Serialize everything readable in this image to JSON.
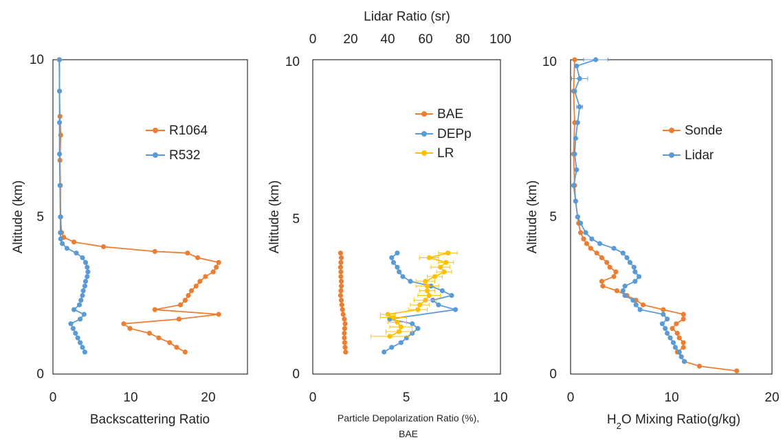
{
  "chart_data": [
    {
      "type": "line",
      "xlabel": "Backscattering Ratio",
      "ylabel": "Altitude (km)",
      "xlim": [
        0,
        25
      ],
      "ylim": [
        0,
        10
      ],
      "xticks": [
        "0",
        "10",
        "20"
      ],
      "yticks": [
        "0",
        "5",
        "10"
      ],
      "grid": false,
      "legend_position": "right",
      "series": [
        {
          "name": "R1064",
          "color": "#ED7D31",
          "points": [
            [
              17.0,
              0.7
            ],
            [
              15.9,
              0.85
            ],
            [
              15.0,
              1.0
            ],
            [
              13.6,
              1.15
            ],
            [
              12.4,
              1.3
            ],
            [
              9.9,
              1.45
            ],
            [
              9.1,
              1.6
            ],
            [
              16.2,
              1.75
            ],
            [
              21.3,
              1.9
            ],
            [
              13.1,
              2.05
            ],
            [
              16.4,
              2.2
            ],
            [
              17.0,
              2.35
            ],
            [
              17.4,
              2.5
            ],
            [
              17.8,
              2.65
            ],
            [
              18.4,
              2.8
            ],
            [
              18.9,
              2.95
            ],
            [
              19.6,
              3.1
            ],
            [
              20.6,
              3.25
            ],
            [
              21.0,
              3.4
            ],
            [
              21.3,
              3.55
            ],
            [
              18.6,
              3.7
            ],
            [
              17.3,
              3.85
            ],
            [
              13.1,
              3.9
            ],
            [
              6.5,
              4.05
            ],
            [
              2.7,
              4.2
            ],
            [
              1.4,
              4.35
            ],
            [
              1.1,
              4.5
            ],
            [
              1.0,
              5.0
            ],
            [
              0.95,
              6.0
            ],
            [
              0.9,
              6.8
            ],
            [
              1.0,
              7.6
            ],
            [
              0.9,
              8.2
            ],
            [
              0.85,
              9.0
            ],
            [
              0.8,
              10.0
            ]
          ]
        },
        {
          "name": "R532",
          "color": "#5B9BD5",
          "points": [
            [
              4.1,
              0.7
            ],
            [
              3.8,
              0.85
            ],
            [
              3.5,
              1.0
            ],
            [
              3.2,
              1.15
            ],
            [
              2.9,
              1.3
            ],
            [
              2.6,
              1.45
            ],
            [
              2.3,
              1.6
            ],
            [
              3.5,
              1.75
            ],
            [
              4.0,
              1.9
            ],
            [
              2.7,
              2.05
            ],
            [
              3.4,
              2.2
            ],
            [
              3.6,
              2.35
            ],
            [
              3.8,
              2.5
            ],
            [
              3.9,
              2.65
            ],
            [
              4.1,
              2.8
            ],
            [
              4.2,
              2.95
            ],
            [
              4.4,
              3.1
            ],
            [
              4.5,
              3.25
            ],
            [
              4.4,
              3.4
            ],
            [
              4.2,
              3.55
            ],
            [
              3.8,
              3.7
            ],
            [
              3.0,
              3.85
            ],
            [
              1.8,
              4.0
            ],
            [
              1.2,
              4.15
            ],
            [
              1.0,
              4.3
            ],
            [
              0.95,
              4.5
            ],
            [
              0.95,
              5.0
            ],
            [
              0.9,
              6.0
            ],
            [
              0.85,
              7.0
            ],
            [
              0.85,
              8.0
            ],
            [
              0.85,
              9.0
            ],
            [
              0.85,
              10.0
            ]
          ]
        }
      ]
    },
    {
      "type": "line",
      "xlabel": "Particle Depolarization Ratio (%),",
      "xlabel_line2": "BAE",
      "x2label": "Lidar Ratio (sr)",
      "ylabel": "Altitude (km)",
      "xlim": [
        0,
        10
      ],
      "x2lim": [
        0,
        100
      ],
      "ylim": [
        0,
        10
      ],
      "xticks": [
        "0",
        "5",
        "10"
      ],
      "x2ticks": [
        "0",
        "20",
        "40",
        "60",
        "80",
        "100"
      ],
      "yticks": [
        "0",
        "5",
        "10"
      ],
      "grid": false,
      "legend_position": "top-right",
      "series": [
        {
          "name": "BAE",
          "color": "#ED7D31",
          "axis": "bottom",
          "points": [
            [
              1.75,
              0.7
            ],
            [
              1.72,
              0.85
            ],
            [
              1.7,
              1.0
            ],
            [
              1.68,
              1.15
            ],
            [
              1.68,
              1.3
            ],
            [
              1.7,
              1.45
            ],
            [
              1.72,
              1.6
            ],
            [
              1.68,
              1.75
            ],
            [
              1.62,
              1.9
            ],
            [
              1.58,
              2.05
            ],
            [
              1.55,
              2.2
            ],
            [
              1.52,
              2.35
            ],
            [
              1.48,
              2.5
            ],
            [
              1.5,
              2.65
            ],
            [
              1.52,
              2.8
            ],
            [
              1.52,
              2.95
            ],
            [
              1.5,
              3.1
            ],
            [
              1.5,
              3.25
            ],
            [
              1.48,
              3.4
            ],
            [
              1.5,
              3.55
            ],
            [
              1.52,
              3.7
            ],
            [
              1.48,
              3.85
            ]
          ]
        },
        {
          "name": "DEPp",
          "color": "#5B9BD5",
          "axis": "bottom",
          "points": [
            [
              3.8,
              0.7
            ],
            [
              4.2,
              0.85
            ],
            [
              4.7,
              1.0
            ],
            [
              5.0,
              1.15
            ],
            [
              5.3,
              1.3
            ],
            [
              5.6,
              1.45
            ],
            [
              5.3,
              1.6
            ],
            [
              4.1,
              1.75
            ],
            [
              7.6,
              2.05
            ],
            [
              6.7,
              2.2
            ],
            [
              6.4,
              2.35
            ],
            [
              7.4,
              2.5
            ],
            [
              6.9,
              2.65
            ],
            [
              6.3,
              2.8
            ],
            [
              5.2,
              2.95
            ],
            [
              4.8,
              3.1
            ],
            [
              4.6,
              3.25
            ],
            [
              4.5,
              3.4
            ],
            [
              4.3,
              3.55
            ],
            [
              4.2,
              3.7
            ],
            [
              4.5,
              3.85
            ]
          ]
        },
        {
          "name": "LR",
          "color": "#FFC000",
          "axis": "top",
          "points": [
            [
              41,
              1.2
            ],
            [
              46,
              1.35
            ],
            [
              47,
              1.5
            ],
            [
              45,
              1.65
            ],
            [
              43,
              1.8
            ],
            [
              40,
              1.9
            ],
            [
              56,
              2.05
            ],
            [
              57,
              2.2
            ],
            [
              60,
              2.35
            ],
            [
              62,
              2.5
            ],
            [
              61,
              2.65
            ],
            [
              61,
              2.8
            ],
            [
              60,
              2.95
            ],
            [
              65,
              3.1
            ],
            [
              70,
              3.25
            ],
            [
              68,
              3.4
            ],
            [
              71,
              3.55
            ],
            [
              62,
              3.7
            ],
            [
              72,
              3.85
            ]
          ],
          "errors": [
            [
              10,
              1.2
            ],
            [
              7,
              1.35
            ],
            [
              6,
              1.5
            ],
            [
              5,
              1.65
            ],
            [
              7,
              1.8
            ],
            [
              4,
              1.9
            ],
            [
              5,
              2.05
            ],
            [
              5,
              2.2
            ],
            [
              6,
              2.35
            ],
            [
              6,
              2.5
            ],
            [
              4,
              2.65
            ],
            [
              6,
              2.8
            ],
            [
              5,
              2.95
            ],
            [
              4,
              3.1
            ],
            [
              4,
              3.25
            ],
            [
              5,
              3.4
            ],
            [
              4,
              3.55
            ],
            [
              5,
              3.7
            ],
            [
              5,
              3.85
            ]
          ]
        }
      ]
    },
    {
      "type": "line",
      "xlabel": "H",
      "xlabel_sub": "2",
      "xlabel_tail": "O Mixing Ratio(g/kg)",
      "ylabel": "Altitude (km)",
      "xlim": [
        0,
        20
      ],
      "ylim": [
        0,
        10
      ],
      "xticks": [
        "0",
        "10",
        "20"
      ],
      "yticks": [
        "0",
        "5",
        "10"
      ],
      "grid": false,
      "legend_position": "right",
      "series": [
        {
          "name": "Sonde",
          "color": "#ED7D31",
          "points": [
            [
              16.5,
              0.1
            ],
            [
              12.8,
              0.25
            ],
            [
              11.3,
              0.4
            ],
            [
              11.0,
              0.55
            ],
            [
              10.6,
              0.7
            ],
            [
              11.2,
              0.85
            ],
            [
              11.2,
              1.0
            ],
            [
              10.8,
              1.15
            ],
            [
              10.6,
              1.3
            ],
            [
              10.1,
              1.45
            ],
            [
              10.5,
              1.6
            ],
            [
              11.2,
              1.75
            ],
            [
              11.2,
              1.9
            ],
            [
              9.2,
              2.05
            ],
            [
              7.2,
              2.2
            ],
            [
              6.5,
              2.35
            ],
            [
              5.6,
              2.5
            ],
            [
              4.6,
              2.65
            ],
            [
              3.2,
              2.8
            ],
            [
              3.1,
              2.95
            ],
            [
              4.3,
              3.1
            ],
            [
              4.5,
              3.25
            ],
            [
              3.9,
              3.4
            ],
            [
              3.6,
              3.55
            ],
            [
              3.1,
              3.7
            ],
            [
              2.6,
              3.85
            ],
            [
              2.0,
              4.0
            ],
            [
              1.6,
              4.15
            ],
            [
              1.3,
              4.3
            ],
            [
              1.0,
              4.5
            ],
            [
              0.8,
              4.8
            ],
            [
              0.7,
              5.0
            ],
            [
              0.5,
              5.5
            ],
            [
              0.4,
              6.0
            ],
            [
              0.3,
              7.0
            ],
            [
              0.4,
              8.0
            ],
            [
              0.3,
              9.0
            ],
            [
              0.4,
              10.0
            ]
          ]
        },
        {
          "name": "Lidar",
          "color": "#5B9BD5",
          "points": [
            [
              11.3,
              0.4
            ],
            [
              11.0,
              0.55
            ],
            [
              10.8,
              0.7
            ],
            [
              10.4,
              0.85
            ],
            [
              10.2,
              1.0
            ],
            [
              9.9,
              1.15
            ],
            [
              9.6,
              1.3
            ],
            [
              9.4,
              1.45
            ],
            [
              9.1,
              1.6
            ],
            [
              9.6,
              1.75
            ],
            [
              9.2,
              1.9
            ],
            [
              6.9,
              2.05
            ],
            [
              6.5,
              2.2
            ],
            [
              6.2,
              2.35
            ],
            [
              5.4,
              2.5
            ],
            [
              5.2,
              2.65
            ],
            [
              5.4,
              2.8
            ],
            [
              6.4,
              2.95
            ],
            [
              6.8,
              3.1
            ],
            [
              6.4,
              3.25
            ],
            [
              6.3,
              3.4
            ],
            [
              5.9,
              3.55
            ],
            [
              5.6,
              3.7
            ],
            [
              5.2,
              3.85
            ],
            [
              4.3,
              4.0
            ],
            [
              2.9,
              4.15
            ],
            [
              2.1,
              4.3
            ],
            [
              1.5,
              4.5
            ],
            [
              1.0,
              4.8
            ],
            [
              0.7,
              5.0
            ],
            [
              0.5,
              5.5
            ],
            [
              0.3,
              6.0
            ],
            [
              0.6,
              6.5
            ],
            [
              0.4,
              7.0
            ],
            [
              0.5,
              7.5
            ],
            [
              0.7,
              8.0
            ],
            [
              0.9,
              8.5
            ],
            [
              0.4,
              9.0
            ],
            [
              0.9,
              9.4
            ],
            [
              0.6,
              9.8
            ],
            [
              2.5,
              10.0
            ]
          ],
          "errors": [
            [
              1.2,
              10.0
            ],
            [
              0.8,
              9.4
            ],
            [
              0.3,
              8.5
            ]
          ]
        }
      ]
    }
  ]
}
